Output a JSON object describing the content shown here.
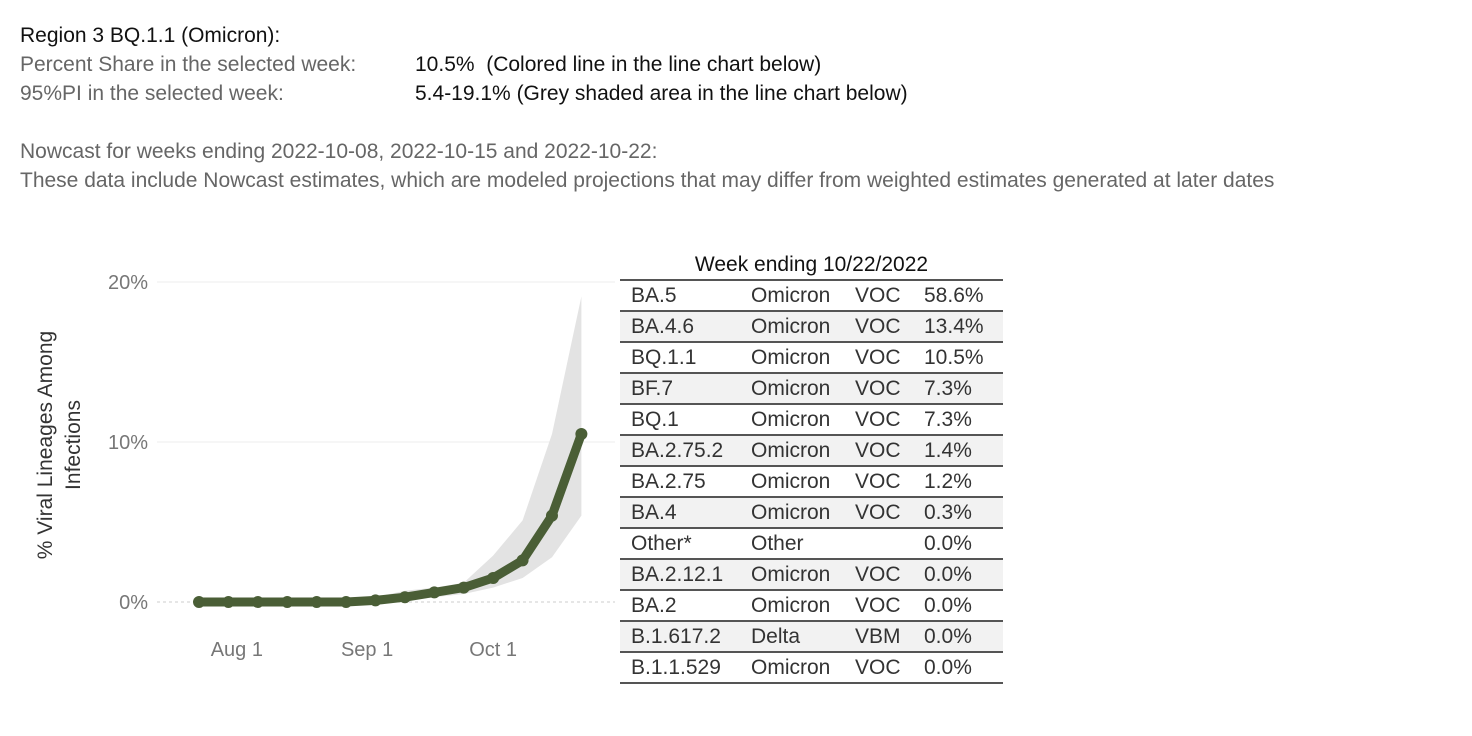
{
  "info": {
    "title": "Region 3  BQ.1.1 (Omicron):",
    "share_label": "Percent Share in the selected week:",
    "share_value": "10.5%  (Colored line in the line chart below)",
    "pi_label": "95%PI in the selected week:",
    "pi_value": "5.4-19.1% (Grey shaded area in the line chart below)"
  },
  "nowcast": {
    "line1": "Nowcast for weeks ending 2022-10-08, 2022-10-15 and 2022-10-22:",
    "line2": "These data include Nowcast estimates, which are modeled projections that may differ from weighted estimates generated at later dates"
  },
  "colors": {
    "line": "#4a5e36",
    "band": "#e3e3e3",
    "grid": "#ececec",
    "zero": "#cccccc"
  },
  "chart_data": [
    {
      "type": "line",
      "ylabel": "% Viral Lineages Among Infections",
      "ylim": [
        0,
        20
      ],
      "yticks": [
        "0%",
        "10%",
        "20%"
      ],
      "xticks": [
        {
          "date": "2022-08-01",
          "label": "Aug 1"
        },
        {
          "date": "2022-09-01",
          "label": "Sep 1"
        },
        {
          "date": "2022-10-01",
          "label": "Oct 1"
        }
      ],
      "xlim": [
        "2022-07-13",
        "2022-10-30"
      ],
      "grid": true,
      "series": [
        {
          "x": [
            "2022-07-23",
            "2022-07-30",
            "2022-08-06",
            "2022-08-13",
            "2022-08-20",
            "2022-08-27",
            "2022-09-03",
            "2022-09-10",
            "2022-09-17",
            "2022-09-24",
            "2022-10-01",
            "2022-10-08",
            "2022-10-15",
            "2022-10-22"
          ],
          "y": [
            0.0,
            0.0,
            0.0,
            0.0,
            0.0,
            0.0,
            0.1,
            0.3,
            0.6,
            0.9,
            1.5,
            2.6,
            5.4,
            10.5
          ],
          "lower": [
            0.0,
            0.0,
            0.0,
            0.0,
            0.0,
            0.0,
            0.0,
            0.1,
            0.3,
            0.5,
            0.9,
            1.5,
            2.8,
            5.4
          ],
          "upper": [
            0.0,
            0.0,
            0.0,
            0.0,
            0.0,
            0.0,
            0.3,
            0.7,
            0.9,
            1.2,
            2.9,
            5.1,
            10.5,
            19.1
          ]
        }
      ]
    },
    {
      "type": "table",
      "title": "Week ending 10/22/2022",
      "rows": [
        [
          "BA.5",
          "Omicron",
          "VOC",
          "58.6%"
        ],
        [
          "BA.4.6",
          "Omicron",
          "VOC",
          "13.4%"
        ],
        [
          "BQ.1.1",
          "Omicron",
          "VOC",
          "10.5%"
        ],
        [
          "BF.7",
          "Omicron",
          "VOC",
          "7.3%"
        ],
        [
          "BQ.1",
          "Omicron",
          "VOC",
          "7.3%"
        ],
        [
          "BA.2.75.2",
          "Omicron",
          "VOC",
          "1.4%"
        ],
        [
          "BA.2.75",
          "Omicron",
          "VOC",
          "1.2%"
        ],
        [
          "BA.4",
          "Omicron",
          "VOC",
          "0.3%"
        ],
        [
          "Other*",
          "Other",
          "",
          "0.0%"
        ],
        [
          "BA.2.12.1",
          "Omicron",
          "VOC",
          "0.0%"
        ],
        [
          "BA.2",
          "Omicron",
          "VOC",
          "0.0%"
        ],
        [
          "B.1.617.2",
          "Delta",
          "VBM",
          "0.0%"
        ],
        [
          "B.1.1.529",
          "Omicron",
          "VOC",
          "0.0%"
        ]
      ]
    }
  ]
}
